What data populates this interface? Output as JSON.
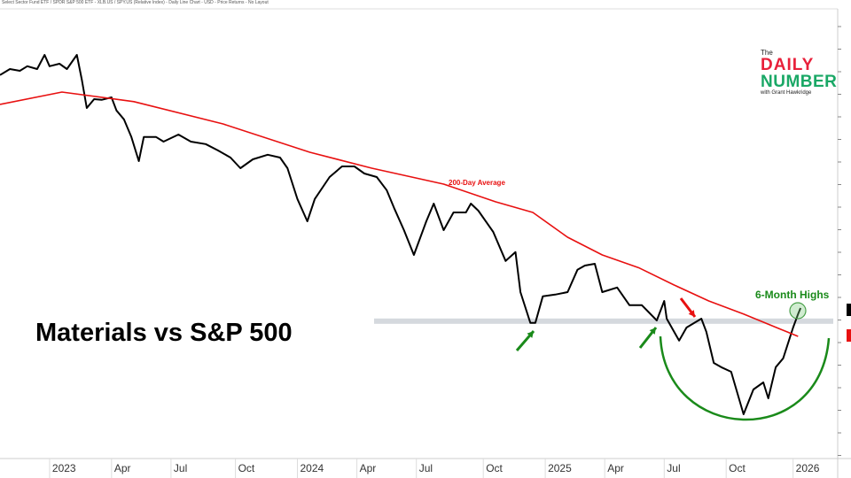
{
  "header": "Select Sector Fund ETF / SPDR S&P 500 ETF - XLB.US / SPY.US (Relative Index) - Daily Line Chart - USD - Price Returns - No Layout",
  "logo": {
    "the": "The",
    "daily": "DAILY",
    "number": "NUMBER",
    "with": "with Grant Hawkridge"
  },
  "colors": {
    "price": "#000000",
    "ma": "#e81010",
    "annotation": "#1a8a1a",
    "arrow_red": "#e81010",
    "band": "#d5d9de"
  },
  "chart_data": {
    "type": "line",
    "title": "Materials vs S&P 500",
    "xlabel": "",
    "ylabel": "",
    "x_ticks": [
      {
        "label": "2023",
        "x": 2023.0
      },
      {
        "label": "Apr",
        "x": 2023.25
      },
      {
        "label": "Jul",
        "x": 2023.49
      },
      {
        "label": "Oct",
        "x": 2023.75
      },
      {
        "label": "2024",
        "x": 2024.0
      },
      {
        "label": "Apr",
        "x": 2024.24
      },
      {
        "label": "Jul",
        "x": 2024.48
      },
      {
        "label": "Oct",
        "x": 2024.75
      },
      {
        "label": "2025",
        "x": 2025.0
      },
      {
        "label": "Apr",
        "x": 2025.24
      },
      {
        "label": "Jul",
        "x": 2025.48
      },
      {
        "label": "Oct",
        "x": 2025.73
      },
      {
        "label": "2026",
        "x": 2026.0
      }
    ],
    "xlim": [
      2022.8,
      2026.18
    ],
    "ylim": [
      5.5,
      132.5
    ],
    "grid": false,
    "series": [
      {
        "key": "price",
        "x": [
          2022.8,
          2022.84,
          2022.88,
          2022.91,
          2022.95,
          2022.98,
          2023.0,
          2023.04,
          2023.07,
          2023.11,
          2023.13,
          2023.15,
          2023.18,
          2023.21,
          2023.25,
          2023.27,
          2023.3,
          2023.33,
          2023.36,
          2023.38,
          2023.43,
          2023.46,
          2023.52,
          2023.57,
          2023.63,
          2023.68,
          2023.73,
          2023.77,
          2023.82,
          2023.88,
          2023.93,
          2023.96,
          2024.0,
          2024.04,
          2024.07,
          2024.13,
          2024.18,
          2024.23,
          2024.27,
          2024.32,
          2024.36,
          2024.39,
          2024.43,
          2024.47,
          2024.52,
          2024.55,
          2024.59,
          2024.63,
          2024.68,
          2024.7,
          2024.73,
          2024.79,
          2024.84,
          2024.88,
          2024.9,
          2024.94,
          2024.96,
          2024.99,
          2025.04,
          2025.09,
          2025.13,
          2025.16,
          2025.2,
          2025.23,
          2025.29,
          2025.34,
          2025.39,
          2025.45,
          2025.48,
          2025.49,
          2025.54,
          2025.57,
          2025.63,
          2025.65,
          2025.68,
          2025.71,
          2025.75,
          2025.8,
          2025.84,
          2025.88,
          2025.9,
          2025.93,
          2025.96,
          2026.0,
          2026.02,
          2026.03
        ],
        "y": [
          113.8,
          115.5,
          115,
          116.3,
          115.5,
          119.5,
          116.3,
          117,
          115.5,
          119.5,
          112.5,
          104.5,
          107,
          106.8,
          107.5,
          103.8,
          101.3,
          96.3,
          89.5,
          96.3,
          96.3,
          95,
          97,
          95,
          94.3,
          92.5,
          90.5,
          87.5,
          90,
          91.3,
          90.5,
          87.5,
          78.8,
          72.5,
          78.8,
          85,
          88,
          88,
          86,
          85,
          81.3,
          76.3,
          70,
          63,
          72.5,
          77.5,
          70,
          75,
          75,
          77.5,
          75.5,
          69.5,
          61.3,
          63.8,
          52.5,
          43.8,
          43.8,
          51.3,
          51.8,
          52.5,
          58.8,
          60,
          60.5,
          52.5,
          53.8,
          48.8,
          48.8,
          44.5,
          50,
          45,
          38.8,
          42.5,
          45,
          41.3,
          32.5,
          31.3,
          30,
          18,
          25,
          27,
          22.5,
          31.3,
          33.8,
          42.5,
          46.3,
          48
        ]
      },
      {
        "key": "ma",
        "name": "200-Day Average",
        "x": [
          2022.8,
          2023.05,
          2023.34,
          2023.7,
          2024.05,
          2024.3,
          2024.59,
          2024.8,
          2024.95,
          2025.09,
          2025.23,
          2025.38,
          2025.52,
          2025.66,
          2025.8,
          2025.95,
          2026.02
        ],
        "y": [
          105.5,
          109,
          106.3,
          100,
          92,
          87.5,
          83,
          78,
          75,
          68,
          63,
          59.3,
          54.5,
          50,
          46.3,
          42,
          40
        ]
      }
    ],
    "annotations": {
      "ma_label": "200-Day Average",
      "highs_label": "6-Month Highs",
      "support_level": 44.3
    }
  }
}
